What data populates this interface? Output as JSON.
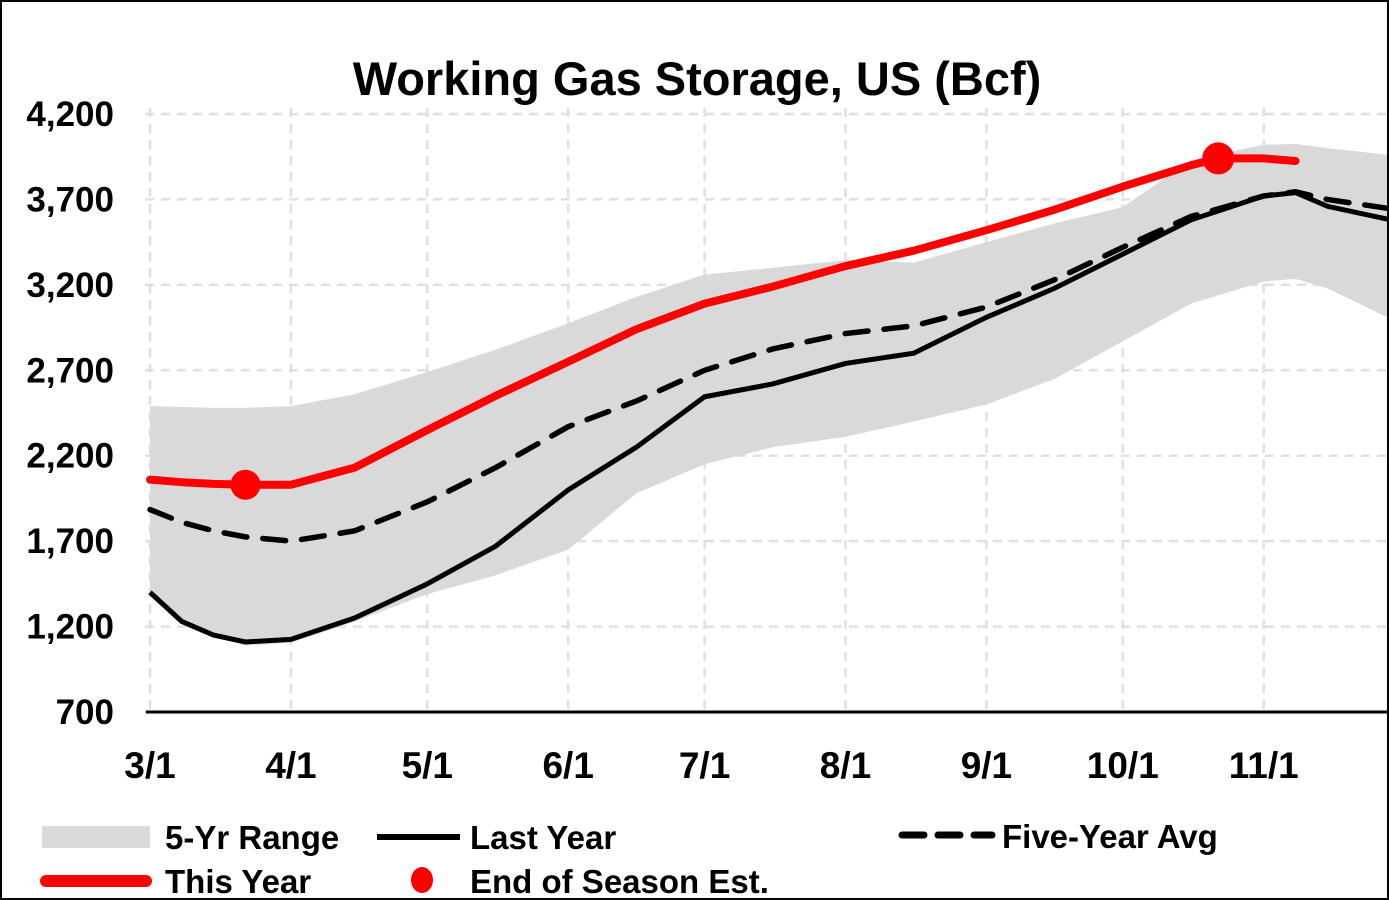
{
  "title": "Working Gas Storage, US (Bcf)",
  "colors": {
    "this_year": "#ff0000",
    "last_year": "#000000",
    "five_year_avg": "#000000",
    "five_yr_range_band": "#d9d9d9",
    "gridline": "#e0e0e0",
    "axis_line": "#000000",
    "background": "#ffffff"
  },
  "y_axis": {
    "tick_labels": [
      "4,200",
      "3,700",
      "3,200",
      "2,700",
      "2,200",
      "1,700",
      "1,200",
      "700"
    ],
    "tick_values": [
      4200,
      3700,
      3200,
      2700,
      2200,
      1700,
      1200,
      700
    ]
  },
  "x_axis": {
    "tick_labels": [
      "3/1",
      "4/1",
      "5/1",
      "6/1",
      "7/1",
      "8/1",
      "9/1",
      "10/1",
      "11/1"
    ],
    "tick_days": [
      0,
      31,
      61,
      92,
      122,
      153,
      184,
      214,
      245
    ],
    "extra_grid_days": [
      273
    ]
  },
  "legend": {
    "rows": [
      {
        "items": [
          {
            "marker": "band-swatch",
            "label": "5-Yr Range"
          },
          {
            "marker": "solid-black-line",
            "label": "Last Year"
          },
          {
            "marker": "dashed-black-line",
            "label": "Five-Year Avg"
          }
        ]
      },
      {
        "items": [
          {
            "marker": "thick-red-line",
            "label": "This Year"
          },
          {
            "marker": "red-dot",
            "label": "End of Season Est."
          }
        ]
      }
    ]
  },
  "chart_data": {
    "type": "line",
    "title": "Working Gas Storage, US (Bcf)",
    "xlabel": "",
    "ylabel": "Bcf",
    "ylim": [
      700,
      4200
    ],
    "x_unit": "days since 3/1",
    "x_domain_days": [
      0,
      273
    ],
    "grid": true,
    "legend_position": "bottom",
    "shared_dates": [
      "3/1",
      "3/8",
      "3/15",
      "3/22",
      "4/1",
      "4/15",
      "5/1",
      "5/15",
      "6/1",
      "6/15",
      "7/1",
      "7/15",
      "8/1",
      "8/15",
      "9/1",
      "9/15",
      "10/1",
      "10/15",
      "11/1",
      "11/8",
      "11/15",
      "11/29"
    ],
    "shared_days": [
      0,
      7,
      14,
      21,
      31,
      45,
      61,
      76,
      92,
      107,
      122,
      137,
      153,
      168,
      184,
      199,
      214,
      229,
      245,
      252,
      259,
      273
    ],
    "band": {
      "name": "5-Yr Range",
      "low": [
        1390,
        1230,
        1140,
        1090,
        1105,
        1230,
        1390,
        1500,
        1650,
        1980,
        2150,
        2250,
        2310,
        2400,
        2500,
        2650,
        2870,
        3090,
        3220,
        3235,
        3180,
        3000
      ],
      "high": [
        2490,
        2485,
        2480,
        2480,
        2490,
        2560,
        2690,
        2820,
        2975,
        3130,
        3260,
        3300,
        3345,
        3330,
        3450,
        3560,
        3655,
        3930,
        4020,
        4025,
        4000,
        3960
      ]
    },
    "series": [
      {
        "name": "Last Year",
        "style": "solid-black",
        "values": [
          1400,
          1230,
          1150,
          1110,
          1125,
          1250,
          1450,
          1670,
          2000,
          2250,
          2545,
          2620,
          2740,
          2800,
          3010,
          3180,
          3380,
          3580,
          3720,
          3740,
          3660,
          3580
        ]
      },
      {
        "name": "Five-Year Avg",
        "style": "dashed-black",
        "values": [
          1885,
          1810,
          1760,
          1725,
          1700,
          1760,
          1930,
          2130,
          2370,
          2520,
          2700,
          2825,
          2915,
          2960,
          3070,
          3230,
          3420,
          3600,
          3720,
          3745,
          3700,
          3645
        ]
      }
    ],
    "this_year": {
      "name": "This Year",
      "style": "thick-red",
      "dates": [
        "3/1",
        "3/8",
        "3/15",
        "3/22",
        "4/1",
        "4/15",
        "5/1",
        "5/15",
        "6/1",
        "6/15",
        "7/1",
        "7/15",
        "8/1",
        "8/15",
        "9/1",
        "9/15",
        "10/1",
        "10/15",
        "10/22",
        "11/1",
        "11/7"
      ],
      "days": [
        0,
        7,
        14,
        21,
        31,
        45,
        61,
        76,
        92,
        107,
        122,
        137,
        153,
        168,
        184,
        199,
        214,
        229,
        235,
        245,
        252
      ],
      "values": [
        2060,
        2045,
        2035,
        2030,
        2030,
        2130,
        2350,
        2550,
        2750,
        2940,
        3090,
        3190,
        3310,
        3400,
        3520,
        3640,
        3775,
        3900,
        3940,
        3940,
        3925
      ]
    },
    "markers": [
      {
        "name": "End of Season Est.",
        "date": "3/22",
        "day": 21,
        "value": 2030
      },
      {
        "name": "End of Season Est.",
        "date": "10/22",
        "day": 235,
        "value": 3940
      }
    ]
  }
}
